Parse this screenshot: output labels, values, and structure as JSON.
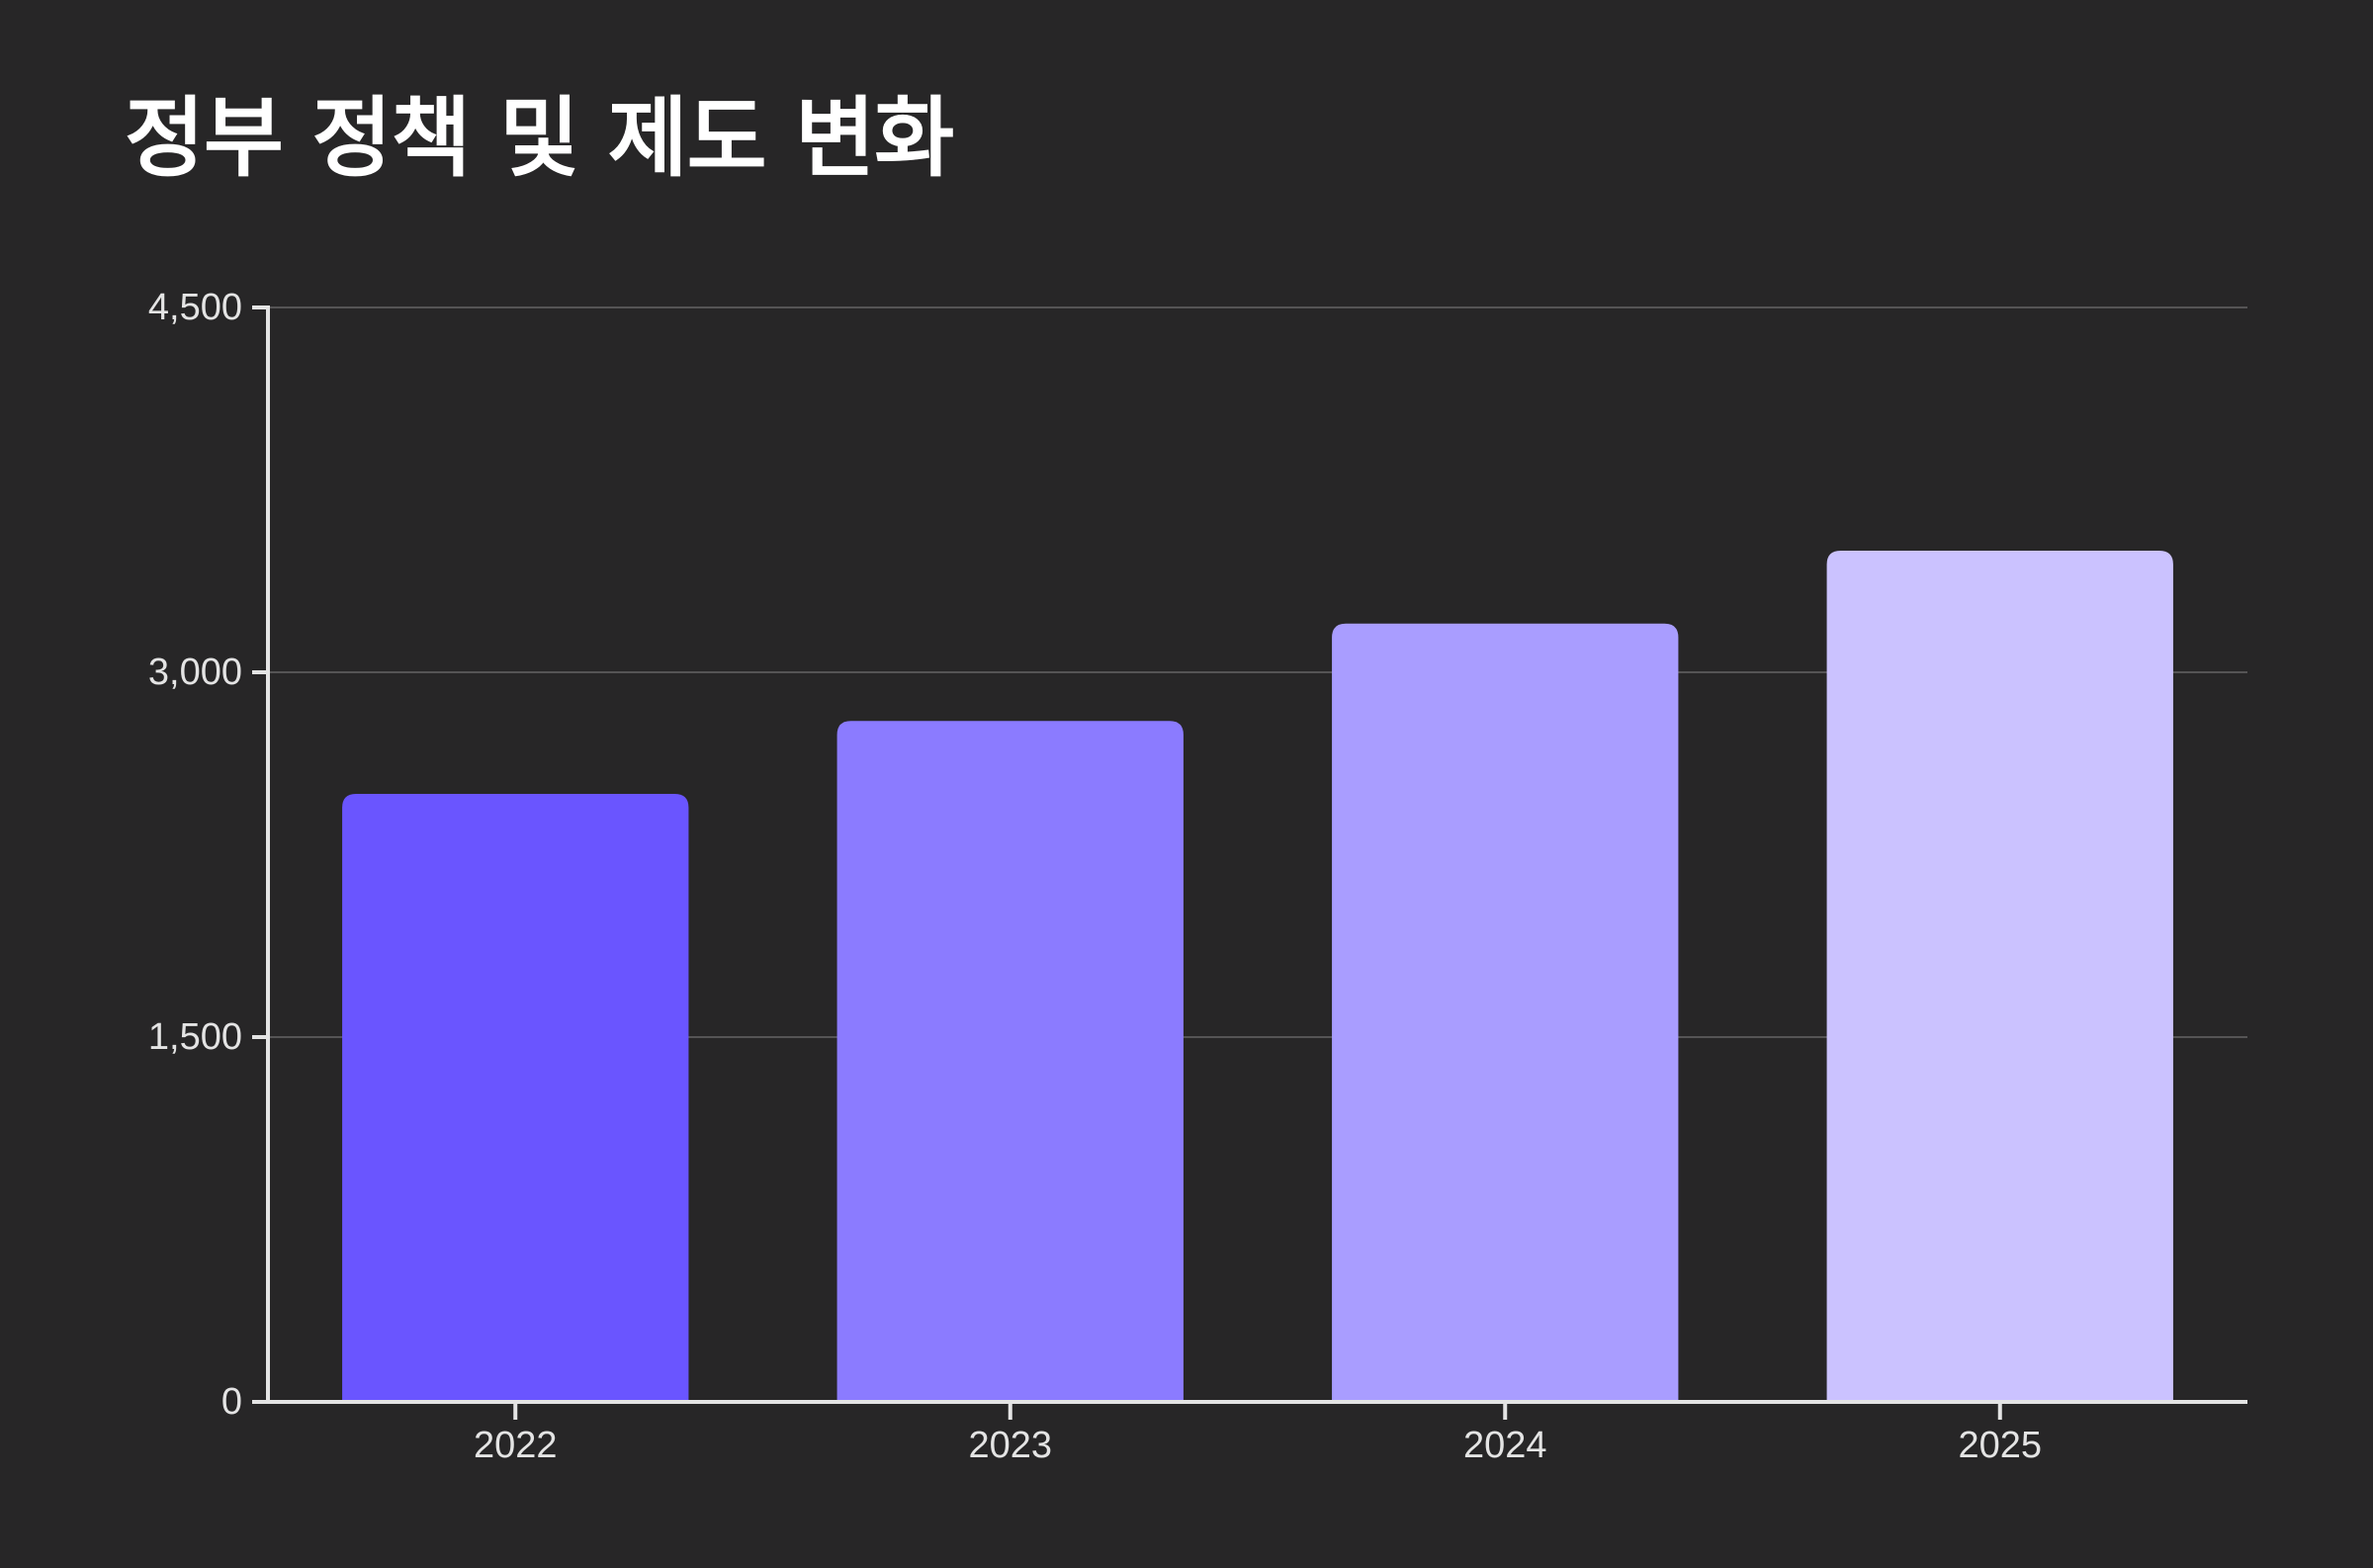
{
  "chart_data": {
    "type": "bar",
    "title": "정부 정책 및 제도 변화",
    "xlabel": "",
    "ylabel": "",
    "categories": [
      "2022",
      "2023",
      "2024",
      "2025"
    ],
    "values": [
      2500,
      2800,
      3200,
      3500
    ],
    "ylim": [
      0,
      4500
    ],
    "yticks": [
      0,
      1500,
      3000,
      4500
    ],
    "ytick_labels": [
      "0",
      "1,500",
      "3,000",
      "4,500"
    ],
    "grid": true,
    "legend": "none",
    "colors": [
      "#6a55ff",
      "#8b7bff",
      "#a99dff",
      "#cbc2ff"
    ],
    "background": "#272627",
    "gridline_color": "#555455",
    "axis_color": "#e4e4e4"
  }
}
